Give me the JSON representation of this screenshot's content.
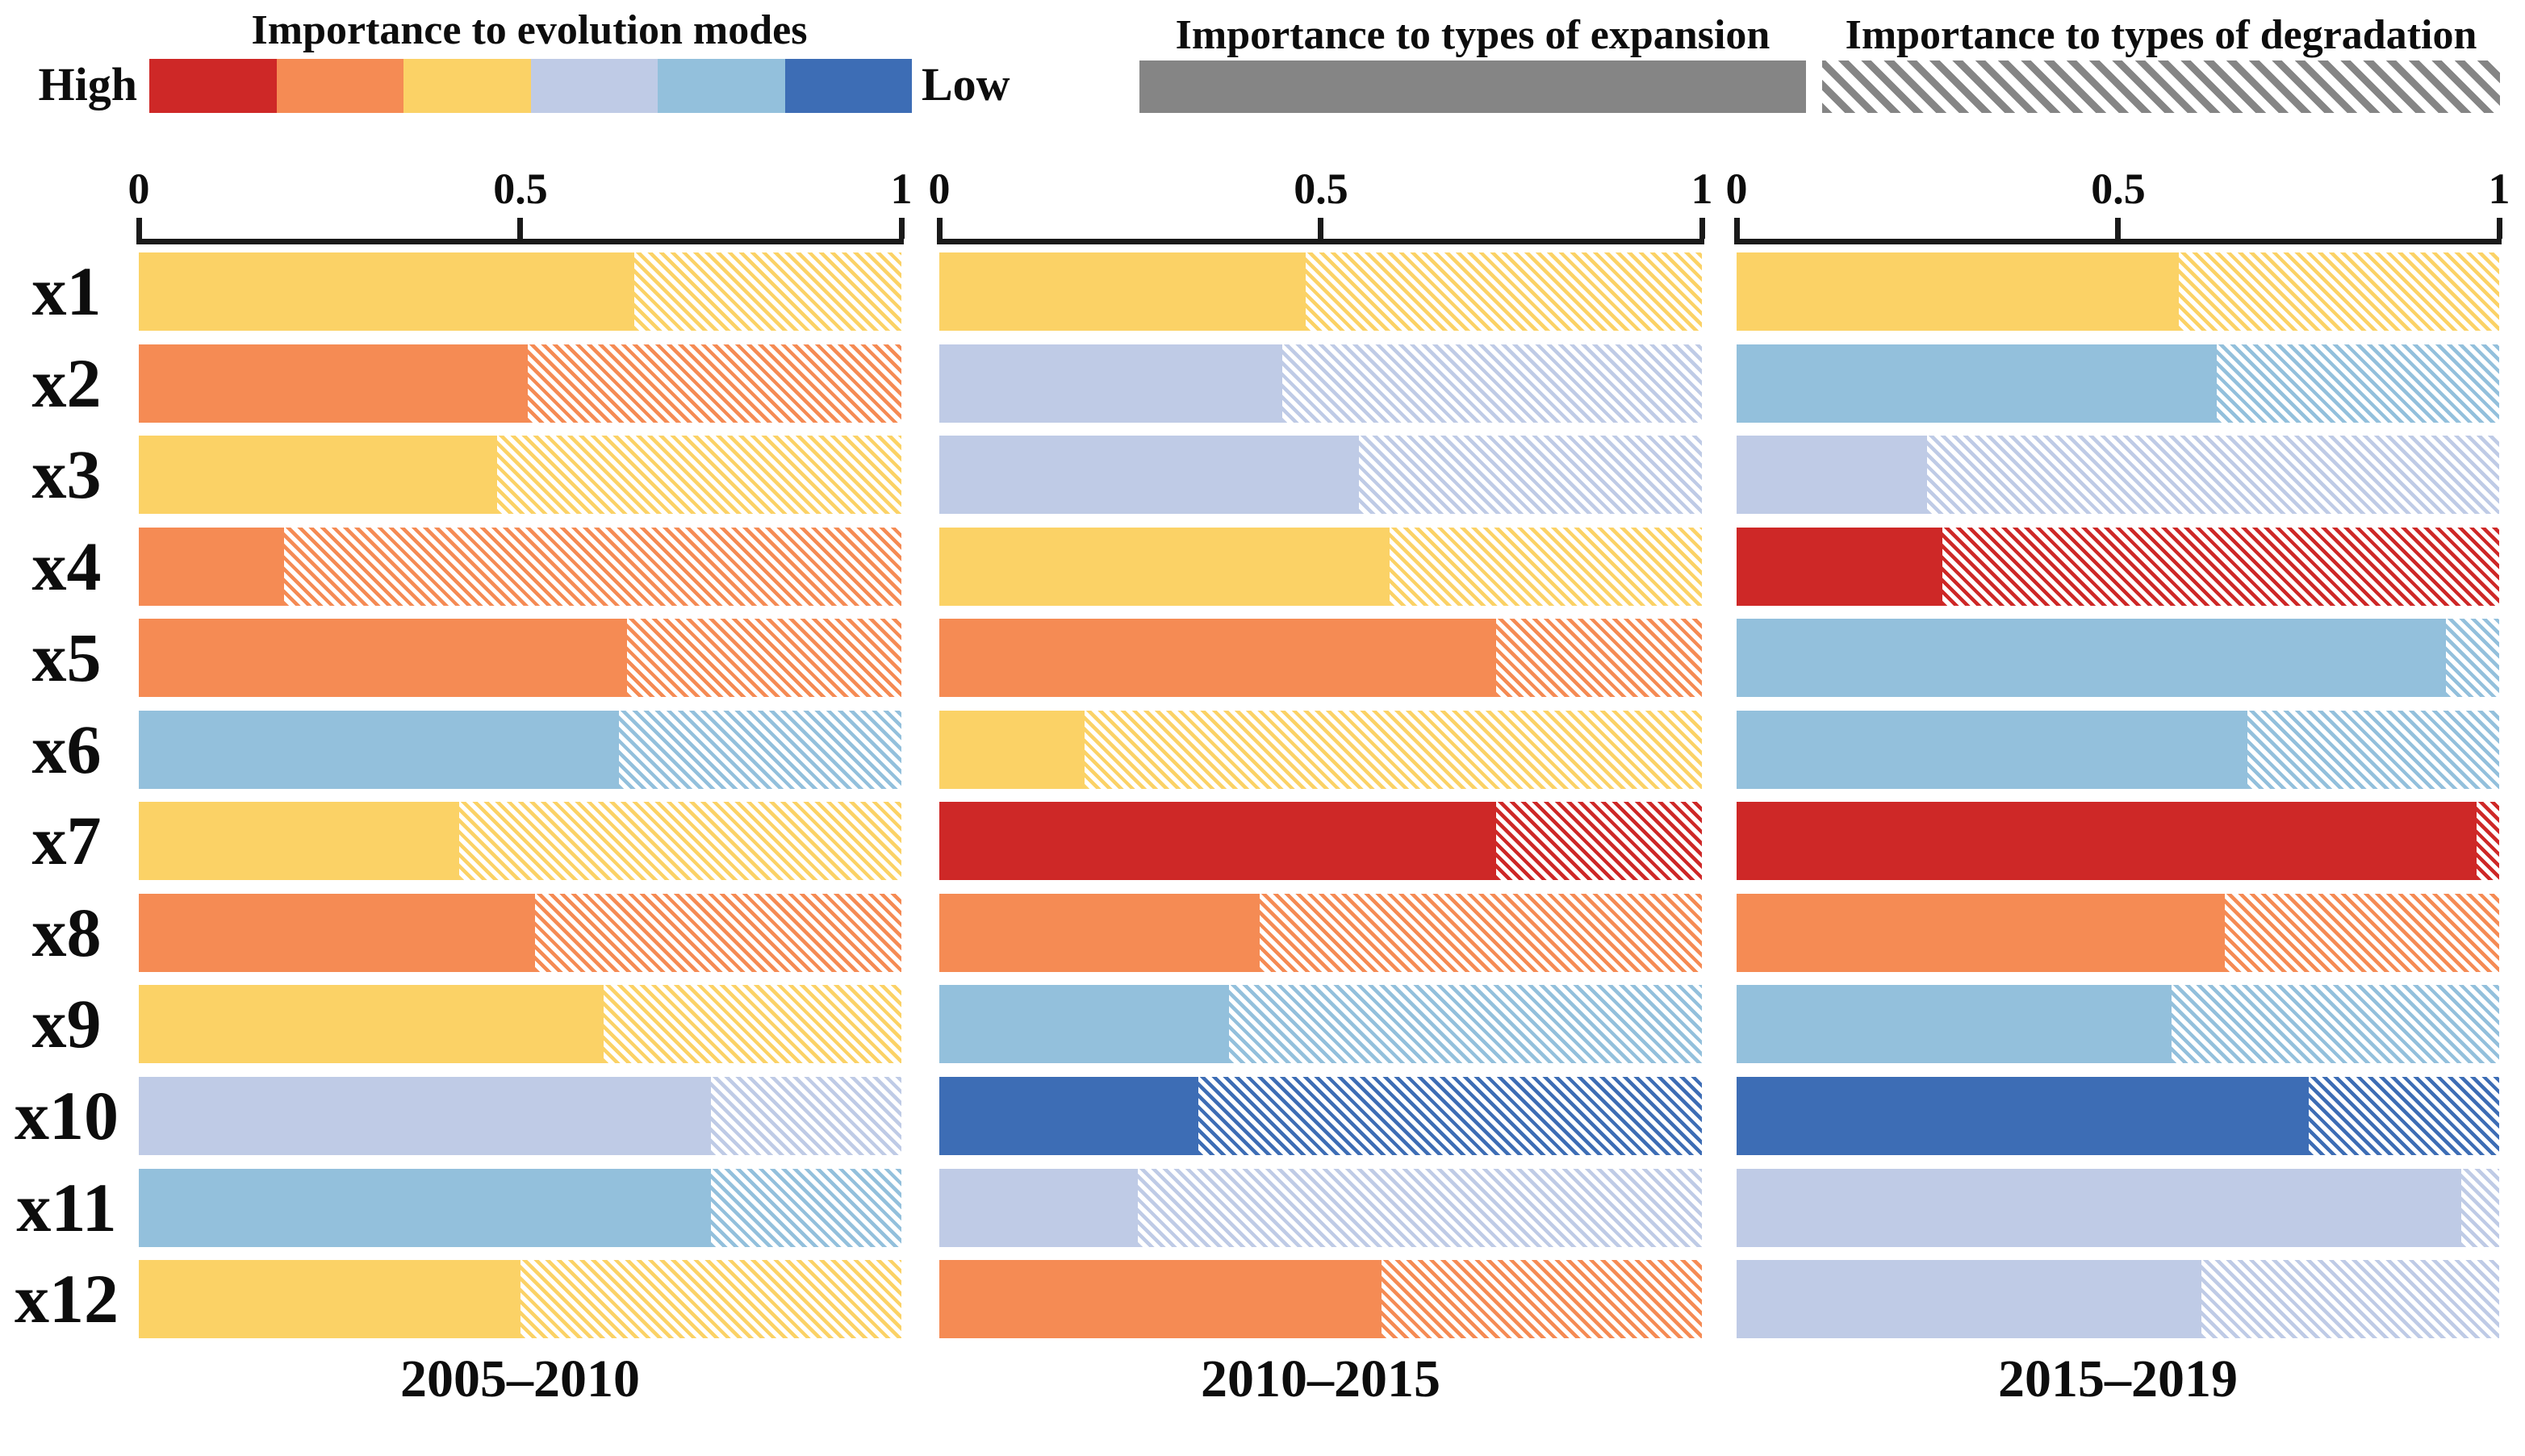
{
  "palette": {
    "red": "#CE2827",
    "orange": "#F58B54",
    "yellow": "#FBD266",
    "pale_blue": "#BFCBE6",
    "light_blue": "#93C0DC",
    "blue": "#3D6DB5",
    "gray": "#858585",
    "hatch_bg": "#FFFFFF",
    "axis": "#1a1a1a"
  },
  "legend": {
    "modes": {
      "title": "Importance to evolution modes",
      "high_label": "High",
      "low_label": "Low",
      "colors": [
        "red",
        "orange",
        "yellow",
        "pale_blue",
        "light_blue",
        "blue"
      ]
    },
    "expansion": {
      "title": "Importance to types of expansion",
      "style": "solid"
    },
    "degradation": {
      "title": "Importance to types of degradation",
      "style": "hatched"
    }
  },
  "chart_data": {
    "type": "bar",
    "orientation": "horizontal",
    "x_range": [
      0,
      1
    ],
    "x_ticks": [
      {
        "value": 0,
        "label": "0"
      },
      {
        "value": 0.5,
        "label": "0.5"
      },
      {
        "value": 1,
        "label": "1"
      }
    ],
    "rows": [
      "x1",
      "x2",
      "x3",
      "x4",
      "x5",
      "x6",
      "x7",
      "x8",
      "x9",
      "x10",
      "x11",
      "x12"
    ],
    "panels": [
      {
        "period": "2005–2010",
        "bars": [
          {
            "row": "x1",
            "level": "yellow",
            "solid_end": 0.65
          },
          {
            "row": "x2",
            "level": "orange",
            "solid_end": 0.51
          },
          {
            "row": "x3",
            "level": "yellow",
            "solid_end": 0.47
          },
          {
            "row": "x4",
            "level": "orange",
            "solid_end": 0.19
          },
          {
            "row": "x5",
            "level": "orange",
            "solid_end": 0.64
          },
          {
            "row": "x6",
            "level": "light_blue",
            "solid_end": 0.63
          },
          {
            "row": "x7",
            "level": "yellow",
            "solid_end": 0.42
          },
          {
            "row": "x8",
            "level": "orange",
            "solid_end": 0.52
          },
          {
            "row": "x9",
            "level": "yellow",
            "solid_end": 0.61
          },
          {
            "row": "x10",
            "level": "pale_blue",
            "solid_end": 0.75
          },
          {
            "row": "x11",
            "level": "light_blue",
            "solid_end": 0.75
          },
          {
            "row": "x12",
            "level": "yellow",
            "solid_end": 0.5
          }
        ]
      },
      {
        "period": "2010–2015",
        "bars": [
          {
            "row": "x1",
            "level": "yellow",
            "solid_end": 0.48
          },
          {
            "row": "x2",
            "level": "pale_blue",
            "solid_end": 0.45
          },
          {
            "row": "x3",
            "level": "pale_blue",
            "solid_end": 0.55
          },
          {
            "row": "x4",
            "level": "yellow",
            "solid_end": 0.59
          },
          {
            "row": "x5",
            "level": "orange",
            "solid_end": 0.73
          },
          {
            "row": "x6",
            "level": "yellow",
            "solid_end": 0.19
          },
          {
            "row": "x7",
            "level": "red",
            "solid_end": 0.73
          },
          {
            "row": "x8",
            "level": "orange",
            "solid_end": 0.42
          },
          {
            "row": "x9",
            "level": "light_blue",
            "solid_end": 0.38
          },
          {
            "row": "x10",
            "level": "blue",
            "solid_end": 0.34
          },
          {
            "row": "x11",
            "level": "pale_blue",
            "solid_end": 0.26
          },
          {
            "row": "x12",
            "level": "orange",
            "solid_end": 0.58
          }
        ]
      },
      {
        "period": "2015–2019",
        "bars": [
          {
            "row": "x1",
            "level": "yellow",
            "solid_end": 0.58
          },
          {
            "row": "x2",
            "level": "light_blue",
            "solid_end": 0.63
          },
          {
            "row": "x3",
            "level": "pale_blue",
            "solid_end": 0.25
          },
          {
            "row": "x4",
            "level": "red",
            "solid_end": 0.27
          },
          {
            "row": "x5",
            "level": "light_blue",
            "solid_end": 0.93
          },
          {
            "row": "x6",
            "level": "light_blue",
            "solid_end": 0.67
          },
          {
            "row": "x7",
            "level": "red",
            "solid_end": 0.97
          },
          {
            "row": "x8",
            "level": "orange",
            "solid_end": 0.64
          },
          {
            "row": "x9",
            "level": "light_blue",
            "solid_end": 0.57
          },
          {
            "row": "x10",
            "level": "blue",
            "solid_end": 0.75
          },
          {
            "row": "x11",
            "level": "pale_blue",
            "solid_end": 0.95
          },
          {
            "row": "x12",
            "level": "pale_blue",
            "solid_end": 0.61
          }
        ]
      }
    ]
  }
}
